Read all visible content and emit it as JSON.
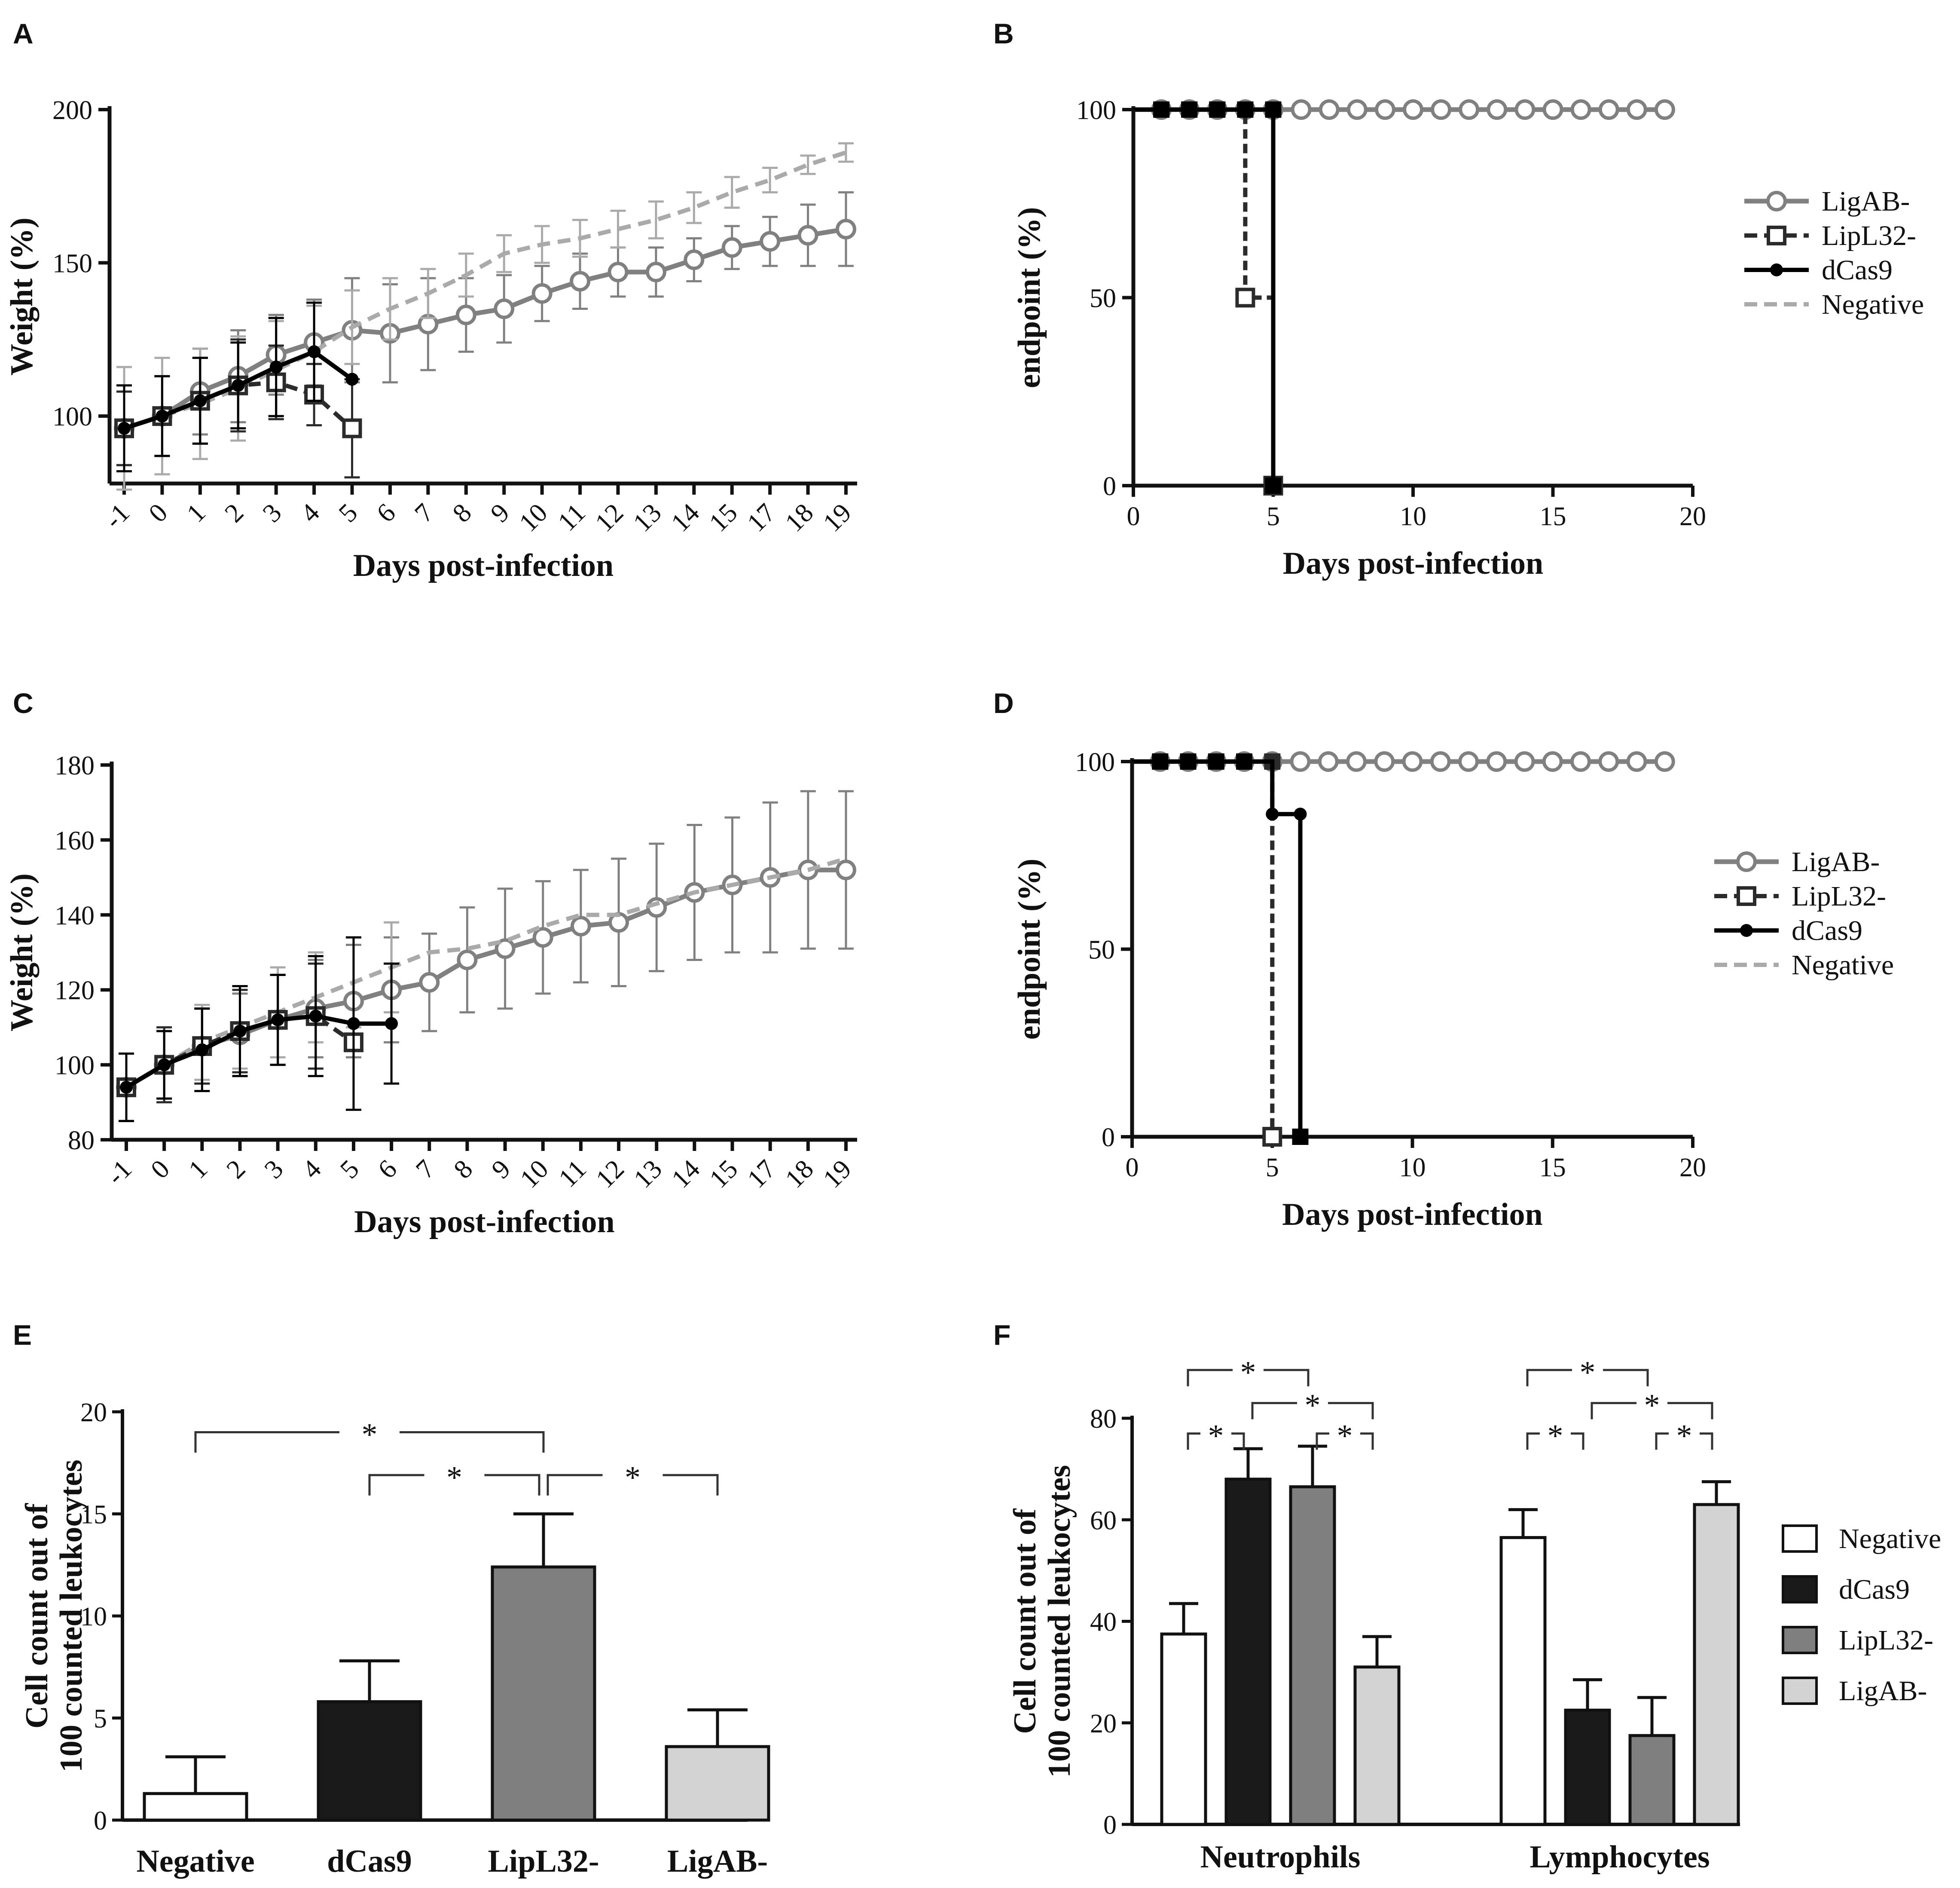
{
  "panel_labels": {
    "A": "A",
    "B": "B",
    "C": "C",
    "D": "D",
    "E": "E",
    "F": "F"
  },
  "colors": {
    "ligab": "#808080",
    "lipl32": "#2b2b2b",
    "dcas9": "#000000",
    "negative": "#aaaaaa",
    "bar_negative": "#ffffff",
    "bar_dcas9": "#1a1a1a",
    "bar_lipl32": "#7f7f7f",
    "bar_ligab": "#d3d3d3"
  },
  "chart_data": [
    {
      "id": "A",
      "type": "line",
      "xlabel": "Days post-infection",
      "ylabel": "Weight (%)",
      "categories": [
        "-1",
        "0",
        "1",
        "2",
        "3",
        "4",
        "5",
        "6",
        "7",
        "8",
        "9",
        "10",
        "11",
        "12",
        "13",
        "14",
        "15",
        "17",
        "18",
        "19"
      ],
      "yticks": [
        100,
        150,
        200
      ],
      "ylim": [
        78,
        200
      ],
      "series": [
        {
          "name": "LigAB-",
          "style": "ligab",
          "values": [
            96,
            100,
            108,
            113,
            120,
            124,
            128,
            127,
            130,
            133,
            135,
            140,
            144,
            147,
            147,
            151,
            155,
            157,
            159,
            161
          ],
          "err": [
            12,
            13,
            14,
            15,
            13,
            14,
            17,
            16,
            15,
            12,
            11,
            9,
            9,
            8,
            8,
            7,
            7,
            8,
            10,
            12
          ]
        },
        {
          "name": "Negative",
          "style": "negative",
          "values": [
            96,
            100,
            104,
            109,
            115,
            121,
            129,
            135,
            140,
            146,
            153,
            156,
            158,
            161,
            164,
            168,
            173,
            177,
            182,
            186
          ],
          "err": [
            20,
            19,
            18,
            17,
            16,
            15,
            12,
            10,
            8,
            7,
            6,
            6,
            6,
            6,
            6,
            5,
            5,
            4,
            3,
            3
          ]
        },
        {
          "name": "LipL32-",
          "style": "lipl32",
          "values": [
            96,
            100,
            105,
            110,
            111,
            107,
            96,
            null,
            null,
            null,
            null,
            null,
            null,
            null,
            null,
            null,
            null,
            null,
            null,
            null
          ],
          "err": [
            12,
            13,
            14,
            15,
            12,
            10,
            16,
            0,
            0,
            0,
            0,
            0,
            0,
            0,
            0,
            0,
            0,
            0,
            0,
            0
          ]
        },
        {
          "name": "dCas9",
          "style": "dcas9",
          "values": [
            96,
            100,
            105,
            110,
            116,
            121,
            112,
            null,
            null,
            null,
            null,
            null,
            null,
            null,
            null,
            null,
            null,
            null,
            null,
            null
          ],
          "err": [
            14,
            13,
            14,
            14,
            16,
            16,
            0,
            0,
            0,
            0,
            0,
            0,
            0,
            0,
            0,
            0,
            0,
            0,
            0,
            0
          ]
        }
      ]
    },
    {
      "id": "B",
      "type": "line",
      "xlabel": "Days post-infection",
      "ylabel": "endpoint (%)",
      "xticks": [
        0,
        5,
        10,
        15,
        20
      ],
      "xlim": [
        0,
        20
      ],
      "yticks": [
        0,
        50,
        100
      ],
      "ylim": [
        0,
        100
      ],
      "series": [
        {
          "name": "LigAB-",
          "style": "ligab",
          "x": [
            1,
            2,
            3,
            4,
            5,
            6,
            7,
            8,
            9,
            10,
            11,
            12,
            13,
            14,
            15,
            16,
            17,
            18,
            19
          ],
          "y": [
            100,
            100,
            100,
            100,
            100,
            100,
            100,
            100,
            100,
            100,
            100,
            100,
            100,
            100,
            100,
            100,
            100,
            100,
            100
          ]
        },
        {
          "name": "LipL32-",
          "style": "lipl32",
          "x": [
            1,
            2,
            3,
            4,
            4,
            5
          ],
          "y": [
            100,
            100,
            100,
            100,
            50,
            0
          ]
        },
        {
          "name": "dCas9",
          "style": "dcas9",
          "x": [
            1,
            2,
            3,
            4,
            5,
            5
          ],
          "y": [
            100,
            100,
            100,
            100,
            100,
            0
          ]
        },
        {
          "name": "Negative",
          "style": "negative",
          "x": [],
          "y": []
        }
      ]
    },
    {
      "id": "C",
      "type": "line",
      "xlabel": "Days post-infection",
      "ylabel": "Weight (%)",
      "categories": [
        "-1",
        "0",
        "1",
        "2",
        "3",
        "4",
        "5",
        "6",
        "7",
        "8",
        "9",
        "10",
        "11",
        "12",
        "13",
        "14",
        "15",
        "17",
        "18",
        "19"
      ],
      "yticks": [
        80,
        100,
        120,
        140,
        160,
        180
      ],
      "ylim": [
        80,
        180
      ],
      "series": [
        {
          "name": "LigAB-",
          "style": "ligab",
          "values": [
            94,
            100,
            105,
            108,
            112,
            115,
            117,
            120,
            122,
            128,
            131,
            134,
            137,
            138,
            142,
            146,
            148,
            150,
            152,
            152
          ],
          "err": [
            9,
            9,
            10,
            11,
            12,
            13,
            15,
            14,
            13,
            14,
            16,
            15,
            15,
            17,
            17,
            18,
            18,
            20,
            21,
            21
          ]
        },
        {
          "name": "Negative",
          "style": "negative",
          "values": [
            94,
            100,
            106,
            110,
            114,
            118,
            122,
            126,
            130,
            131,
            133,
            137,
            140,
            140,
            143,
            146,
            148,
            150,
            152,
            155
          ],
          "err": [
            9,
            9,
            10,
            11,
            12,
            12,
            12,
            12,
            0,
            0,
            0,
            0,
            0,
            0,
            0,
            0,
            0,
            0,
            0,
            0
          ]
        },
        {
          "name": "LipL32-",
          "style": "lipl32",
          "values": [
            94,
            100,
            105,
            109,
            112,
            113,
            106,
            null,
            null,
            null,
            null,
            null,
            null,
            null,
            null,
            null,
            null,
            null,
            null,
            null
          ],
          "err": [
            9,
            10,
            10,
            11,
            12,
            14,
            0,
            0,
            0,
            0,
            0,
            0,
            0,
            0,
            0,
            0,
            0,
            0,
            0,
            0
          ]
        },
        {
          "name": "dCas9",
          "style": "dcas9",
          "values": [
            94,
            100,
            104,
            109,
            112,
            113,
            111,
            111,
            null,
            null,
            null,
            null,
            null,
            null,
            null,
            null,
            null,
            null,
            null,
            null
          ],
          "err": [
            9,
            9,
            11,
            12,
            12,
            16,
            23,
            16,
            0,
            0,
            0,
            0,
            0,
            0,
            0,
            0,
            0,
            0,
            0,
            0
          ]
        }
      ]
    },
    {
      "id": "D",
      "type": "line",
      "xlabel": "Days post-infection",
      "ylabel": "endpoint (%)",
      "xticks": [
        0,
        5,
        10,
        15,
        20
      ],
      "xlim": [
        0,
        20
      ],
      "yticks": [
        0,
        50,
        100
      ],
      "ylim": [
        0,
        100
      ],
      "series": [
        {
          "name": "LigAB-",
          "style": "ligab",
          "x": [
            1,
            2,
            3,
            4,
            5,
            6,
            7,
            8,
            9,
            10,
            11,
            12,
            13,
            14,
            15,
            16,
            17,
            18,
            19
          ],
          "y": [
            100,
            100,
            100,
            100,
            100,
            100,
            100,
            100,
            100,
            100,
            100,
            100,
            100,
            100,
            100,
            100,
            100,
            100,
            100
          ]
        },
        {
          "name": "LipL32-",
          "style": "lipl32",
          "x": [
            1,
            2,
            3,
            4,
            5,
            5
          ],
          "y": [
            100,
            100,
            100,
            100,
            100,
            0
          ]
        },
        {
          "name": "dCas9",
          "style": "dcas9",
          "x": [
            1,
            2,
            3,
            4,
            5,
            6,
            6
          ],
          "y": [
            100,
            100,
            100,
            100,
            86,
            86,
            0
          ]
        },
        {
          "name": "Negative",
          "style": "negative",
          "x": [],
          "y": []
        }
      ]
    },
    {
      "id": "E",
      "type": "bar",
      "xlabel": "",
      "ylabel": [
        "Cell count out of",
        "100 counted leukocytes"
      ],
      "categories": [
        "Negative",
        "dCas9",
        "LipL32-",
        "LigAB-"
      ],
      "values": [
        1.3,
        5.8,
        12.4,
        3.6
      ],
      "err": [
        1.8,
        2.0,
        2.6,
        1.8
      ],
      "styles": [
        "bar_negative",
        "bar_dcas9",
        "bar_lipl32",
        "bar_ligab"
      ],
      "yticks": [
        0,
        5,
        10,
        15,
        20
      ],
      "ylim": [
        0,
        20
      ],
      "significance": [
        {
          "from": 0,
          "to": 2,
          "label": "*",
          "level": 0
        },
        {
          "from": 1,
          "to": 2,
          "label": "*",
          "level": 1
        },
        {
          "from": 2,
          "to": 3,
          "label": "*",
          "level": 1
        }
      ]
    },
    {
      "id": "F",
      "type": "bar",
      "xlabel": "",
      "ylabel": [
        "Cell count out of",
        "100 counted leukocytes"
      ],
      "categories": [
        "Neutrophils",
        "Lymphocytes"
      ],
      "series": [
        {
          "name": "Negative",
          "style": "bar_negative",
          "values": [
            37.5,
            56.5
          ],
          "err": [
            6,
            5.5
          ]
        },
        {
          "name": "dCas9",
          "style": "bar_dcas9",
          "values": [
            68,
            22.5
          ],
          "err": [
            6,
            6
          ]
        },
        {
          "name": "LipL32-",
          "style": "bar_lipl32",
          "values": [
            66.5,
            17.5
          ],
          "err": [
            8,
            7.5
          ]
        },
        {
          "name": "LigAB-",
          "style": "bar_ligab",
          "values": [
            31,
            63
          ],
          "err": [
            6,
            4.5
          ]
        }
      ],
      "yticks": [
        0,
        20,
        40,
        60,
        80
      ],
      "ylim": [
        0,
        80
      ],
      "significance": [
        {
          "group": 0,
          "from": 0,
          "to": 1,
          "label": "*",
          "level": 1
        },
        {
          "group": 0,
          "from": 0,
          "to": 2,
          "label": "*",
          "level": 3
        },
        {
          "group": 0,
          "from": 1,
          "to": 3,
          "label": "*",
          "level": 2
        },
        {
          "group": 0,
          "from": 2,
          "to": 3,
          "label": "*",
          "level": 1
        },
        {
          "group": 1,
          "from": 0,
          "to": 1,
          "label": "*",
          "level": 1
        },
        {
          "group": 1,
          "from": 0,
          "to": 2,
          "label": "*",
          "level": 3
        },
        {
          "group": 1,
          "from": 1,
          "to": 3,
          "label": "*",
          "level": 2
        },
        {
          "group": 1,
          "from": 2,
          "to": 3,
          "label": "*",
          "level": 1
        }
      ]
    }
  ]
}
